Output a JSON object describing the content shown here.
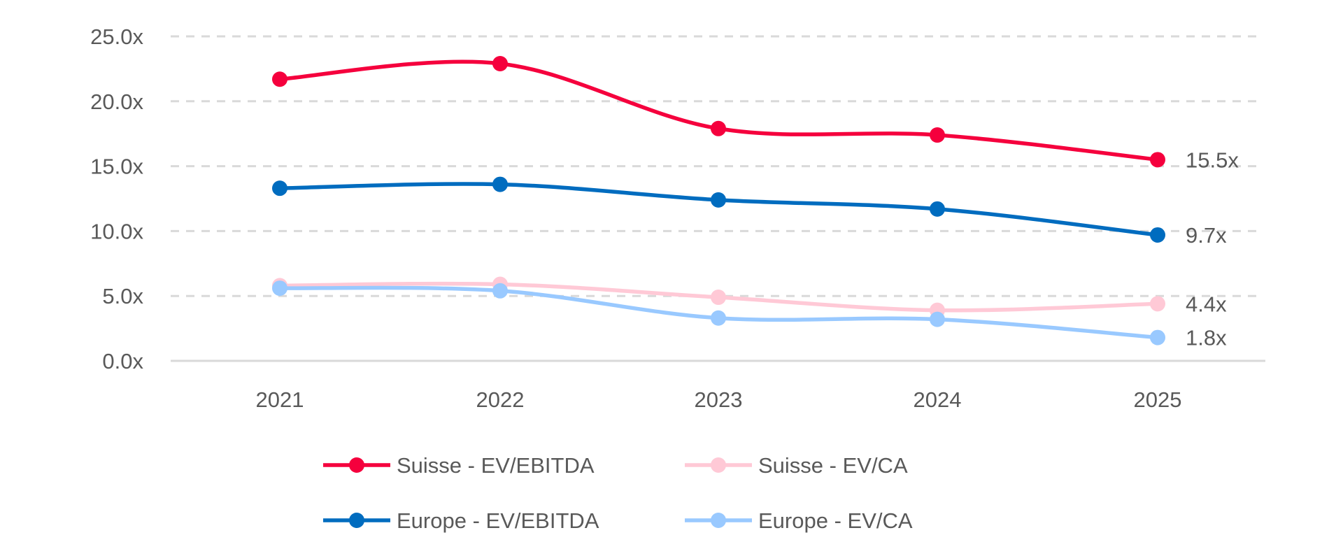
{
  "chart_data": {
    "type": "line",
    "smooth": true,
    "categories": [
      "2021",
      "2022",
      "2023",
      "2024",
      "2025"
    ],
    "ylim": [
      0,
      25
    ],
    "yticks": [
      "0.0x",
      "5.0x",
      "10.0x",
      "15.0x",
      "20.0x",
      "25.0x"
    ],
    "ytick_values": [
      0,
      5,
      10,
      15,
      20,
      25
    ],
    "grid": "horizontal dashed",
    "legend": "bottom",
    "series": [
      {
        "name": "Suisse - EV/EBITDA",
        "color": "#F5003D",
        "values": [
          21.7,
          22.9,
          17.9,
          17.4,
          15.5
        ],
        "end_label": "15.5x"
      },
      {
        "name": "Suisse - EV/CA",
        "color": "#FFC9D6",
        "values": [
          5.8,
          5.9,
          4.9,
          3.9,
          4.4
        ],
        "end_label": "4.4x"
      },
      {
        "name": "Europe - EV/EBITDA",
        "color": "#006CBF",
        "values": [
          13.3,
          13.6,
          12.4,
          11.7,
          9.7
        ],
        "end_label": "9.7x"
      },
      {
        "name": "Europe - EV/CA",
        "color": "#99C9FF",
        "values": [
          5.6,
          5.4,
          3.3,
          3.2,
          1.8
        ],
        "end_label": "1.8x"
      }
    ]
  }
}
